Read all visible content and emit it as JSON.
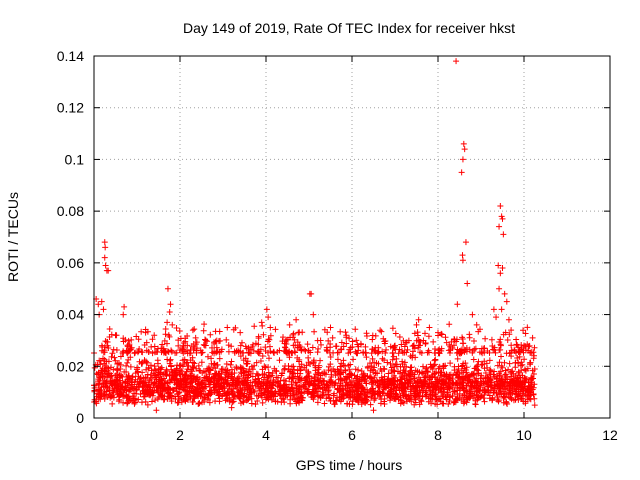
{
  "chart_data": {
    "type": "scatter",
    "title": "Day 149 of 2019, Rate Of TEC Index for receiver hkst",
    "xlabel": "GPS time / hours",
    "ylabel": "ROTI / TECUs",
    "xlim": [
      0,
      12
    ],
    "ylim": [
      0,
      0.14
    ],
    "x_ticks": [
      0,
      2,
      4,
      6,
      8,
      10,
      12
    ],
    "y_ticks": [
      0,
      0.02,
      0.04,
      0.06,
      0.08,
      0.1,
      0.12,
      0.14
    ],
    "x_tick_labels": [
      "0",
      "2",
      "4",
      "6",
      "8",
      "10",
      "12"
    ],
    "y_tick_labels": [
      "0",
      "0.02",
      "0.04",
      "0.06",
      "0.08",
      "0.1",
      "0.12",
      "0.14"
    ],
    "grid": true,
    "marker": "+",
    "color": "#ff0000",
    "series": [
      {
        "name": "ROTI",
        "description": "dense band of points from 0 to about 10.25 h, mostly between 0.005 and 0.025 TECU/min",
        "x_range": [
          0,
          10.25
        ],
        "typical_range": [
          0.005,
          0.025
        ],
        "notable_points": [
          {
            "x": 0.05,
            "y": 0.046
          },
          {
            "x": 0.1,
            "y": 0.044
          },
          {
            "x": 0.12,
            "y": 0.04
          },
          {
            "x": 0.18,
            "y": 0.045
          },
          {
            "x": 0.22,
            "y": 0.042
          },
          {
            "x": 0.25,
            "y": 0.068
          },
          {
            "x": 0.26,
            "y": 0.066
          },
          {
            "x": 0.25,
            "y": 0.062
          },
          {
            "x": 0.27,
            "y": 0.059
          },
          {
            "x": 0.3,
            "y": 0.057
          },
          {
            "x": 0.33,
            "y": 0.057
          },
          {
            "x": 0.5,
            "y": 0.032
          },
          {
            "x": 0.7,
            "y": 0.043
          },
          {
            "x": 0.68,
            "y": 0.04
          },
          {
            "x": 1.2,
            "y": 0.033
          },
          {
            "x": 1.4,
            "y": 0.032
          },
          {
            "x": 1.72,
            "y": 0.05
          },
          {
            "x": 1.78,
            "y": 0.044
          },
          {
            "x": 1.76,
            "y": 0.041
          },
          {
            "x": 1.7,
            "y": 0.037
          },
          {
            "x": 1.82,
            "y": 0.036
          },
          {
            "x": 2.3,
            "y": 0.034
          },
          {
            "x": 2.6,
            "y": 0.03
          },
          {
            "x": 3.1,
            "y": 0.035
          },
          {
            "x": 3.4,
            "y": 0.033
          },
          {
            "x": 3.9,
            "y": 0.037
          },
          {
            "x": 4.02,
            "y": 0.042
          },
          {
            "x": 4.05,
            "y": 0.039
          },
          {
            "x": 4.1,
            "y": 0.035
          },
          {
            "x": 4.55,
            "y": 0.036
          },
          {
            "x": 4.7,
            "y": 0.038
          },
          {
            "x": 4.75,
            "y": 0.033
          },
          {
            "x": 5.02,
            "y": 0.048
          },
          {
            "x": 5.05,
            "y": 0.048
          },
          {
            "x": 5.1,
            "y": 0.04
          },
          {
            "x": 5.5,
            "y": 0.035
          },
          {
            "x": 5.55,
            "y": 0.031
          },
          {
            "x": 6.1,
            "y": 0.03
          },
          {
            "x": 6.6,
            "y": 0.025
          },
          {
            "x": 7.0,
            "y": 0.028
          },
          {
            "x": 7.5,
            "y": 0.036
          },
          {
            "x": 7.55,
            "y": 0.038
          },
          {
            "x": 7.8,
            "y": 0.035
          },
          {
            "x": 8.0,
            "y": 0.033
          },
          {
            "x": 8.42,
            "y": 0.138
          },
          {
            "x": 8.45,
            "y": 0.044
          },
          {
            "x": 8.6,
            "y": 0.106
          },
          {
            "x": 8.62,
            "y": 0.104
          },
          {
            "x": 8.58,
            "y": 0.1
          },
          {
            "x": 8.55,
            "y": 0.095
          },
          {
            "x": 8.65,
            "y": 0.068
          },
          {
            "x": 8.57,
            "y": 0.063
          },
          {
            "x": 8.58,
            "y": 0.061
          },
          {
            "x": 8.68,
            "y": 0.052
          },
          {
            "x": 8.8,
            "y": 0.04
          },
          {
            "x": 8.9,
            "y": 0.036
          },
          {
            "x": 9.3,
            "y": 0.042
          },
          {
            "x": 9.35,
            "y": 0.039
          },
          {
            "x": 9.45,
            "y": 0.082
          },
          {
            "x": 9.48,
            "y": 0.078
          },
          {
            "x": 9.5,
            "y": 0.077
          },
          {
            "x": 9.42,
            "y": 0.074
          },
          {
            "x": 9.52,
            "y": 0.071
          },
          {
            "x": 9.4,
            "y": 0.059
          },
          {
            "x": 9.5,
            "y": 0.058
          },
          {
            "x": 9.45,
            "y": 0.056
          },
          {
            "x": 9.42,
            "y": 0.05
          },
          {
            "x": 9.55,
            "y": 0.048
          },
          {
            "x": 9.6,
            "y": 0.045
          },
          {
            "x": 9.48,
            "y": 0.042
          },
          {
            "x": 9.65,
            "y": 0.038
          },
          {
            "x": 9.7,
            "y": 0.034
          },
          {
            "x": 10.0,
            "y": 0.028
          },
          {
            "x": 10.2,
            "y": 0.031
          },
          {
            "x": 1.45,
            "y": 0.003
          },
          {
            "x": 3.2,
            "y": 0.004
          },
          {
            "x": 6.5,
            "y": 0.003
          },
          {
            "x": 10.25,
            "y": 0.005
          },
          {
            "x": 10.22,
            "y": 0.009
          }
        ]
      }
    ]
  }
}
